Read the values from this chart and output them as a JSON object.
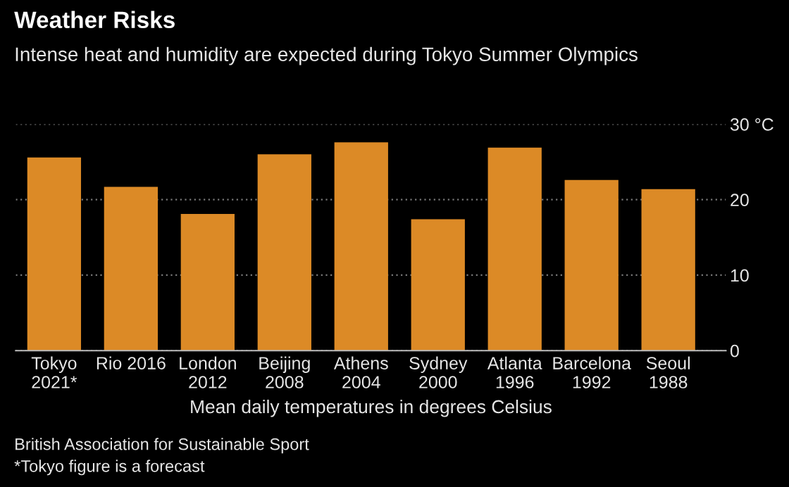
{
  "chart_data": {
    "type": "bar",
    "title": "Weather Risks",
    "subtitle": "Intense heat and humidity are expected during Tokyo Summer Olympics",
    "categories": [
      "Tokyo\n2021*",
      "Rio 2016",
      "London\n2012",
      "Beijing\n2008",
      "Athens\n2004",
      "Sydney\n2000",
      "Atlanta\n1996",
      "Barcelona\n1992",
      "Seoul\n1988"
    ],
    "values": [
      25.6,
      21.7,
      18.1,
      26.0,
      27.6,
      17.4,
      26.9,
      22.6,
      21.4
    ],
    "color": "#dc8a26",
    "xlabel": "Mean daily temperatures in degrees Celsius",
    "ylim": [
      0,
      30
    ],
    "yticks": [
      0,
      10,
      20,
      {
        "value": 30,
        "label": "30 °C"
      }
    ],
    "grid": "y",
    "annotations": [
      "British Association for Sustainable Sport",
      "*Tokyo figure is a forecast"
    ]
  }
}
